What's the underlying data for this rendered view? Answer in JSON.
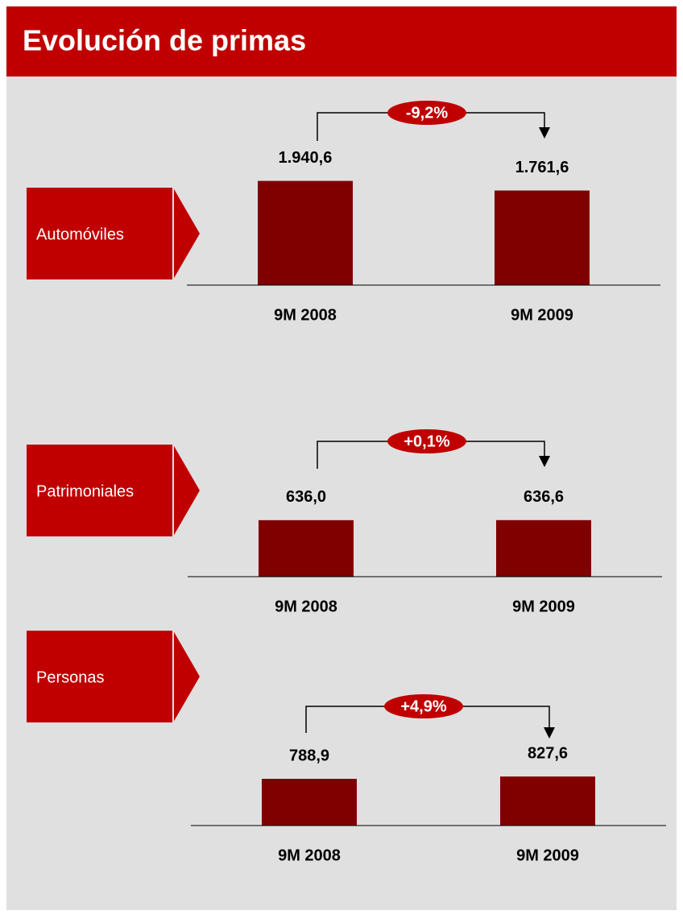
{
  "title": "Evolución de primas",
  "chart_data": [
    {
      "type": "bar",
      "title": "Automóviles",
      "annotation": "-9,2%",
      "categories": [
        "9M 2008",
        "9M 2009"
      ],
      "values": [
        1940.6,
        1761.6
      ],
      "value_labels": [
        "1.940,6",
        "1.761,6"
      ],
      "color": "#800000",
      "ylim": [
        0,
        2250
      ]
    },
    {
      "type": "bar",
      "title": "Patrimoniales",
      "annotation": "+0,1%",
      "categories": [
        "9M 2008",
        "9M 2009"
      ],
      "values": [
        636.0,
        636.6
      ],
      "value_labels": [
        "636,0",
        "636,6"
      ],
      "color": "#800000",
      "ylim": [
        0,
        1360
      ]
    },
    {
      "type": "bar",
      "title": "Personas",
      "annotation": "+4,9%",
      "categories": [
        "9M 2008",
        "9M 2009"
      ],
      "values": [
        788.9,
        827.6
      ],
      "value_labels": [
        "788,9",
        "827,6"
      ],
      "color": "#800000",
      "ylim": [
        0,
        2040
      ]
    }
  ]
}
